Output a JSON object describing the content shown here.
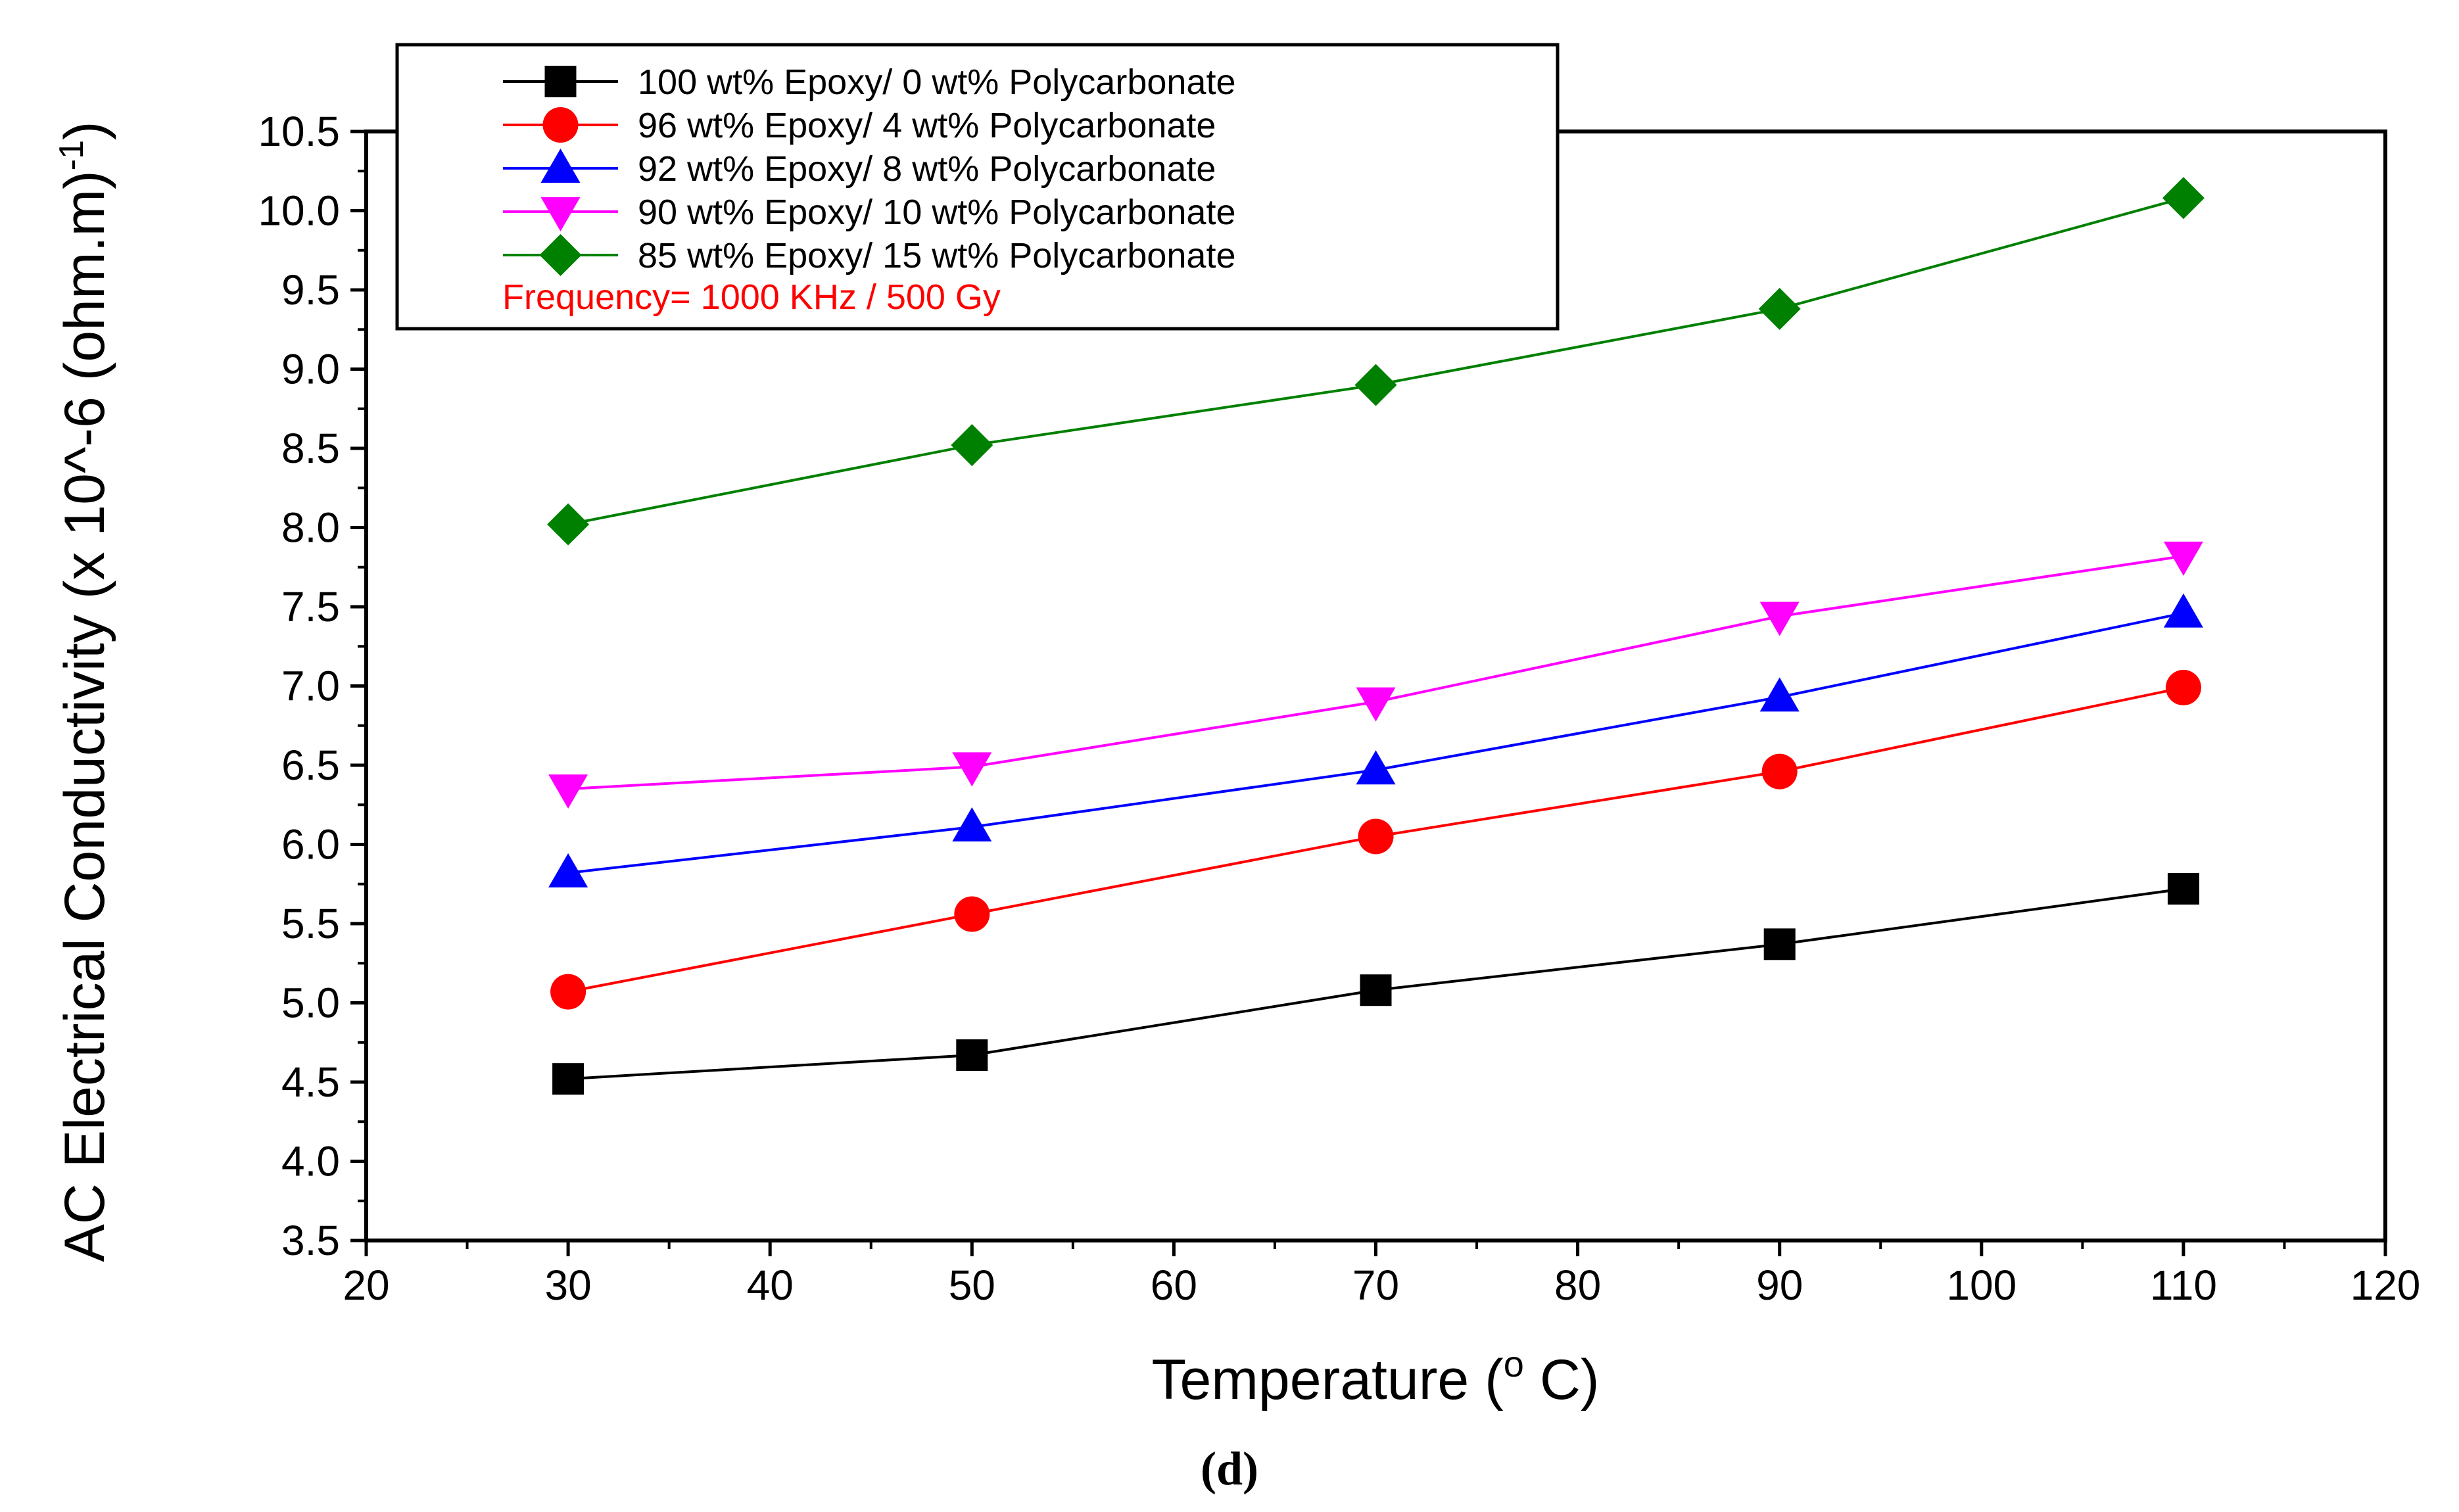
{
  "chart_data": {
    "type": "line",
    "title": "",
    "xlabel_main": "Temperature (",
    "xlabel_sup": "o",
    "xlabel_end": " C)",
    "ylabel_main": "AC Electrical Conductivity (x 10^-6 (ohm.m)",
    "ylabel_sup": "-1",
    "ylabel_end": ")",
    "xlim": [
      20,
      120
    ],
    "ylim": [
      3.5,
      10.5
    ],
    "x_ticks": [
      20,
      30,
      40,
      50,
      60,
      70,
      80,
      90,
      100,
      110,
      120
    ],
    "x_tick_labels": [
      "20",
      "30",
      "40",
      "50",
      "60",
      "70",
      "80",
      "90",
      "100",
      "110",
      "120"
    ],
    "y_ticks": [
      3.5,
      4.0,
      4.5,
      5.0,
      5.5,
      6.0,
      6.5,
      7.0,
      7.5,
      8.0,
      8.5,
      9.0,
      9.5,
      10.0,
      10.5
    ],
    "y_tick_labels": [
      "3.5",
      "4.0",
      "4.5",
      "5.0",
      "5.5",
      "6.0",
      "6.5",
      "7.0",
      "7.5",
      "8.0",
      "8.5",
      "9.0",
      "9.5",
      "10.0",
      "10.5"
    ],
    "x": [
      30,
      50,
      70,
      90,
      110
    ],
    "series": [
      {
        "name": "100 wt% Epoxy/ 0 wt% Polycarbonate",
        "color": "#000000",
        "marker": "square",
        "values": [
          4.52,
          4.67,
          5.08,
          5.37,
          5.72
        ]
      },
      {
        "name": "96 wt% Epoxy/ 4 wt% Polycarbonate",
        "color": "#ff0000",
        "marker": "circle",
        "values": [
          5.07,
          5.56,
          6.05,
          6.46,
          6.99
        ]
      },
      {
        "name": "92 wt% Epoxy/ 8 wt% Polycarbonate",
        "color": "#0000ff",
        "marker": "triangle-up",
        "values": [
          5.82,
          6.11,
          6.47,
          6.93,
          7.46
        ]
      },
      {
        "name": "90 wt% Epoxy/ 10 wt% Polycarbonate",
        "color": "#ff00ff",
        "marker": "triangle-down",
        "values": [
          6.35,
          6.49,
          6.9,
          7.44,
          7.82
        ]
      },
      {
        "name": "85 wt% Epoxy/ 15 wt% Polycarbonate",
        "color": "#008000",
        "marker": "diamond",
        "values": [
          8.02,
          8.52,
          8.9,
          9.38,
          10.08
        ]
      }
    ],
    "legend_note": "Frequency= 1000 KHz / 500 Gy",
    "legend_note_color": "#ff0000",
    "legend_position": "top-left",
    "grid": false
  },
  "caption": "(d)"
}
